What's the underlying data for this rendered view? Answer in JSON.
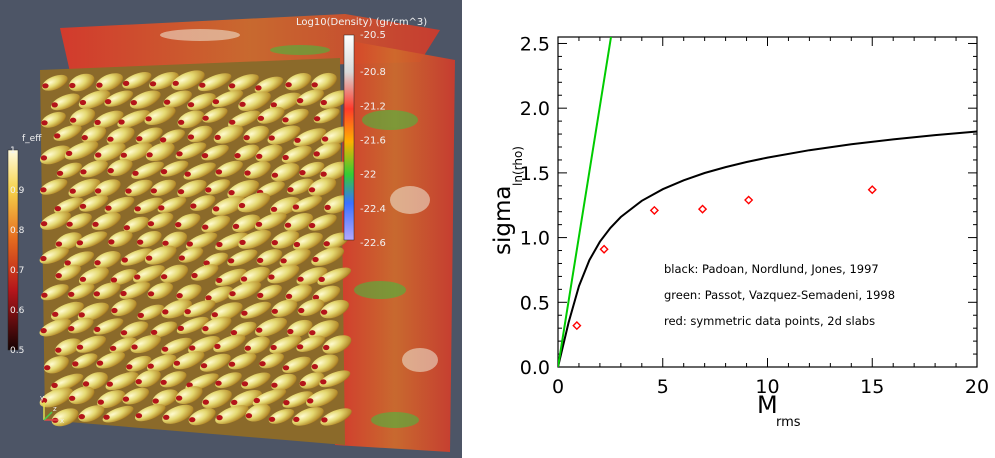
{
  "visualization": {
    "density_bar": {
      "title": "Log10(Density)  (gr/cm^3)",
      "tick_labels": [
        "-20.5",
        "-20.8",
        "-21.2",
        "-21.6",
        "-22",
        "-22.4",
        "-22.6"
      ]
    },
    "feff_bar": {
      "title": "f_eff",
      "tick_labels": [
        "1",
        "0.9",
        "0.8",
        "0.7",
        "0.6",
        "0.5"
      ]
    },
    "axes_triad": {
      "y": "y",
      "x": "x",
      "z": "z"
    },
    "colors": {
      "background": "#4d5566",
      "slab_base": "#c8492f",
      "blob_yellow": "#e7dc78",
      "blob_shadow": "#b58a2c"
    }
  },
  "chart_data": {
    "type": "line",
    "xlabel": "M",
    "xlabel_sub": "rms",
    "ylabel": "sigma",
    "ylabel_sub": "ln(rho)",
    "xlim": [
      0,
      20
    ],
    "ylim": [
      0,
      2.55
    ],
    "x_ticks": [
      "0",
      "5",
      "10",
      "15",
      "20"
    ],
    "y_ticks": [
      "0.0",
      "0.5",
      "1.0",
      "1.5",
      "2.0",
      "2.5"
    ],
    "series": [
      {
        "name": "black: Padoan, Nordlund, Jones, 1997",
        "color": "#000000",
        "kind": "line",
        "x": [
          0,
          0.5,
          1,
          1.5,
          2,
          2.5,
          3,
          4,
          5,
          6,
          7,
          8,
          9,
          10,
          12,
          14,
          16,
          18,
          20
        ],
        "y": [
          0,
          0.341,
          0.626,
          0.826,
          0.968,
          1.075,
          1.159,
          1.284,
          1.374,
          1.443,
          1.499,
          1.545,
          1.584,
          1.618,
          1.675,
          1.721,
          1.759,
          1.792,
          1.82
        ]
      },
      {
        "name": "green: Passot, Vazquez-Semadeni, 1998",
        "color": "#00cc00",
        "kind": "line",
        "x": [
          0,
          2.53
        ],
        "y": [
          0,
          2.55
        ]
      },
      {
        "name": "red: symmetric data points, 2d slabs",
        "color": "#ff0000",
        "kind": "scatter",
        "x": [
          0.9,
          2.2,
          4.6,
          6.9,
          9.1,
          15.0
        ],
        "y": [
          0.32,
          0.91,
          1.21,
          1.22,
          1.29,
          1.37
        ]
      }
    ],
    "legend_placement": "bottom-right",
    "grid": false
  }
}
